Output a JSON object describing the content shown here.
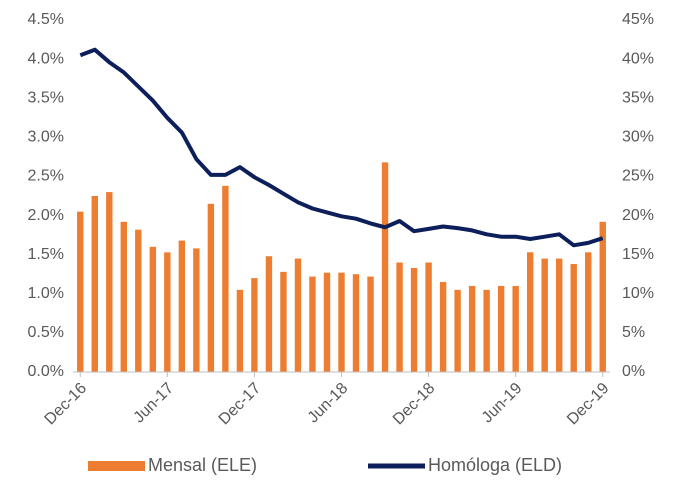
{
  "chart_data": {
    "type": "bar_line",
    "categories": [
      "Dec-16",
      null,
      null,
      null,
      null,
      null,
      "Jun-17",
      null,
      null,
      null,
      null,
      null,
      "Dec-17",
      null,
      null,
      null,
      null,
      null,
      "Jun-18",
      null,
      null,
      null,
      null,
      null,
      "Dec-18",
      null,
      null,
      null,
      null,
      null,
      "Jun-19",
      null,
      null,
      null,
      null,
      null,
      "Dec-19"
    ],
    "series": [
      {
        "name": "Mensal (ELE)",
        "type": "bar",
        "color": "#ED7D31",
        "axis": "y",
        "values": [
          2.05,
          2.25,
          2.3,
          1.92,
          1.82,
          1.6,
          1.53,
          1.68,
          1.58,
          2.15,
          2.38,
          1.05,
          1.2,
          1.48,
          1.28,
          1.45,
          1.22,
          1.27,
          1.27,
          1.25,
          1.22,
          2.68,
          1.4,
          1.33,
          1.4,
          1.15,
          1.05,
          1.1,
          1.05,
          1.1,
          1.1,
          1.53,
          1.45,
          1.45,
          1.38,
          1.53,
          1.92
        ]
      },
      {
        "name": "Homóloga (ELD)",
        "type": "line",
        "color": "#0C1F5B",
        "axis": "y2",
        "values": [
          40.5,
          41.2,
          39.6,
          38.3,
          36.5,
          34.7,
          32.5,
          30.6,
          27.2,
          25.2,
          25.2,
          26.2,
          24.9,
          23.9,
          22.8,
          21.7,
          20.9,
          20.4,
          19.9,
          19.6,
          19.0,
          18.5,
          19.3,
          18.0,
          18.3,
          18.6,
          18.4,
          18.1,
          17.6,
          17.3,
          17.3,
          17.0,
          17.3,
          17.6,
          16.2,
          16.5,
          17.1
        ]
      }
    ],
    "ylim": [
      0,
      4.5
    ],
    "yticks": [
      {
        "value": 0,
        "label": "0.0%"
      },
      {
        "value": 0.5,
        "label": "0.5%"
      },
      {
        "value": 1,
        "label": "1.0%"
      },
      {
        "value": 1.5,
        "label": "1.5%"
      },
      {
        "value": 2,
        "label": "2.0%"
      },
      {
        "value": 2.5,
        "label": "2.5%"
      },
      {
        "value": 3,
        "label": "3.0%"
      },
      {
        "value": 3.5,
        "label": "3.5%"
      },
      {
        "value": 4,
        "label": "4.0%"
      },
      {
        "value": 4.5,
        "label": "4.5%"
      }
    ],
    "y2lim": [
      0,
      45
    ],
    "y2ticks": [
      {
        "value": 0,
        "label": "0%"
      },
      {
        "value": 5,
        "label": "5%"
      },
      {
        "value": 10,
        "label": "10%"
      },
      {
        "value": 15,
        "label": "15%"
      },
      {
        "value": 20,
        "label": "20%"
      },
      {
        "value": 25,
        "label": "25%"
      },
      {
        "value": 30,
        "label": "30%"
      },
      {
        "value": 35,
        "label": "35%"
      },
      {
        "value": 40,
        "label": "40%"
      },
      {
        "value": 45,
        "label": "45%"
      }
    ],
    "grid": false,
    "legend": "bottom"
  }
}
